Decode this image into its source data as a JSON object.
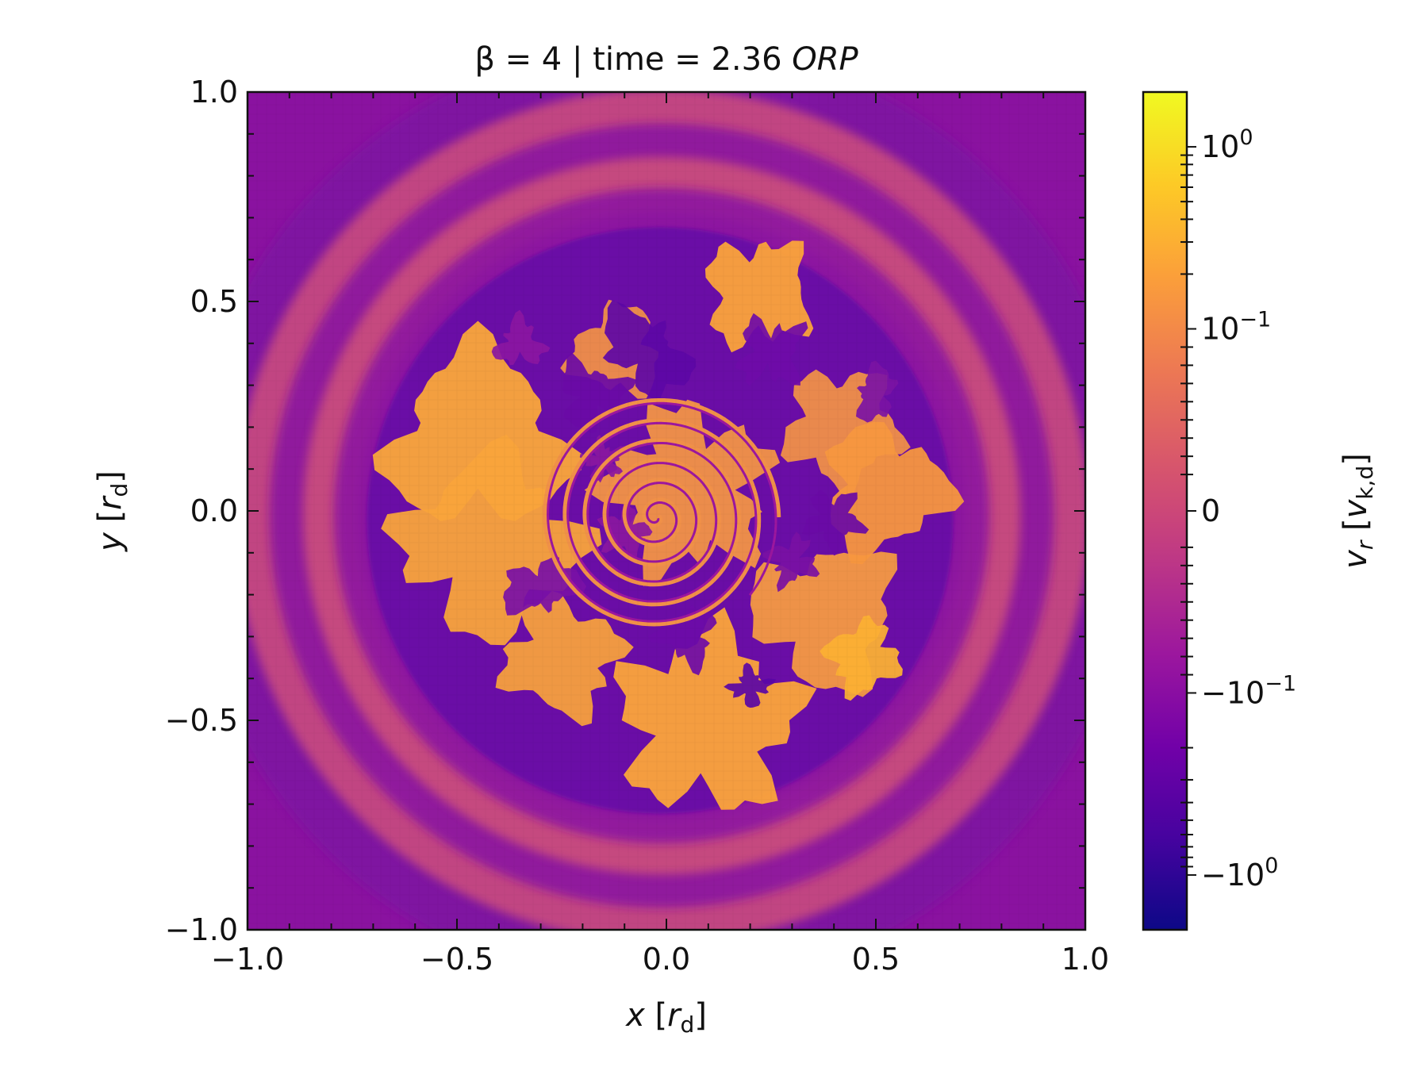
{
  "figure": {
    "title_prefix": "β = 4 | time = 2.36 ",
    "title_unit": "ORP"
  },
  "chart_data": {
    "type": "heatmap",
    "title": "β = 4 | time = 2.36 ORP",
    "xlabel": "x [r_d]",
    "ylabel": "y [r_d]",
    "xlim": [
      -1.0,
      1.0
    ],
    "ylim": [
      -1.0,
      1.0
    ],
    "x_ticks": [
      -1.0,
      -0.5,
      0.0,
      0.5,
      1.0
    ],
    "y_ticks": [
      -1.0,
      -0.5,
      0.0,
      0.5,
      1.0
    ],
    "x_tick_labels": [
      "−1.0",
      "−0.5",
      "0.0",
      "0.5",
      "1.0"
    ],
    "y_tick_labels": [
      "−1.0",
      "−0.5",
      "0.0",
      "0.5",
      "1.0"
    ],
    "x_label_parts": {
      "var": "x",
      "open": " [",
      "sym": "r",
      "sub": "d",
      "close": "]"
    },
    "y_label_parts": {
      "var": "y",
      "open": " [",
      "sym": "r",
      "sub": "d",
      "close": "]"
    },
    "colormap": "plasma",
    "color_scale": "symlog",
    "colorbar": {
      "label_parts": {
        "var": "v",
        "var_sub": "r",
        "open": " [",
        "sym": "v",
        "sub": "k,d",
        "close": "]"
      },
      "range": [
        -2.0,
        2.0
      ],
      "ticks": [
        {
          "value": 1.0,
          "base": "10",
          "exp": "0",
          "neg": false
        },
        {
          "value": 0.1,
          "base": "10",
          "exp": "−1",
          "neg": false
        },
        {
          "value": 0.0,
          "base": "0",
          "exp": "",
          "neg": false
        },
        {
          "value": -0.1,
          "base": "10",
          "exp": "−1",
          "neg": true
        },
        {
          "value": -1.0,
          "base": "10",
          "exp": "0",
          "neg": true
        }
      ]
    },
    "field_description": "radial velocity map: turbulent inner disk (r < ~0.7) with strong positive (orange-yellow) and negative (purple) spiral structures, tight spiral at center; outer region shows concentric rings alternating slightly positive (pink) and negative (purple)"
  },
  "colors": {
    "plasma": [
      "#0d0887",
      "#46039f",
      "#7201a8",
      "#9c179e",
      "#bd3786",
      "#d8576b",
      "#ed7953",
      "#fb9f3a",
      "#fdca26",
      "#f0f921"
    ],
    "axis": "#111111"
  }
}
